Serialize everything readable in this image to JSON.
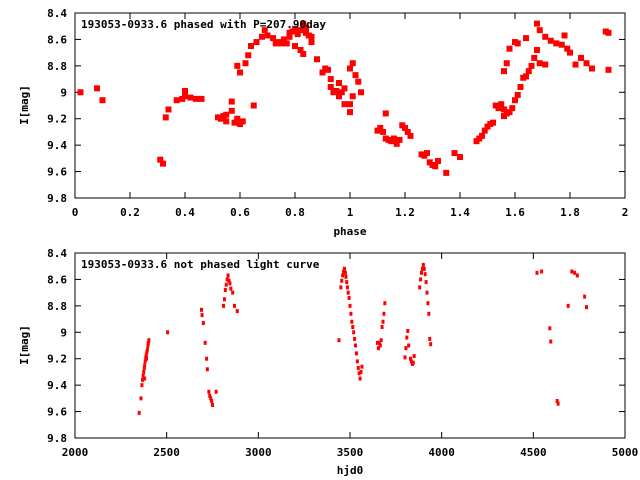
{
  "chart_data": [
    {
      "type": "scatter",
      "title": "193053-0933.6 phased with P=207.90day",
      "xlabel": "phase",
      "ylabel": "I[mag]",
      "xlim": [
        0,
        2
      ],
      "ylim": [
        9.8,
        8.4
      ],
      "y_inverted": true,
      "grid": false,
      "marker_color": "#ff0000",
      "xticks": [
        0,
        0.2,
        0.4,
        0.6,
        0.8,
        1,
        1.2,
        1.4,
        1.6,
        1.8,
        2
      ],
      "xtick_labels": [
        "0",
        "0.2",
        "0.4",
        "0.6",
        "0.8",
        "1",
        "1.2",
        "1.4",
        "1.6",
        "1.8",
        "2"
      ],
      "yticks": [
        8.4,
        8.6,
        8.8,
        9,
        9.2,
        9.4,
        9.6,
        9.8
      ],
      "ytick_labels": [
        "8.4",
        "8.6",
        "8.8",
        "9",
        "9.2",
        "9.4",
        "9.6",
        "9.8"
      ],
      "points": [
        [
          0.02,
          9.0
        ],
        [
          0.08,
          8.97
        ],
        [
          0.1,
          9.06
        ],
        [
          0.31,
          9.51
        ],
        [
          0.32,
          9.54
        ],
        [
          0.33,
          9.19
        ],
        [
          0.34,
          9.13
        ],
        [
          0.37,
          9.06
        ],
        [
          0.39,
          9.05
        ],
        [
          0.4,
          9.03
        ],
        [
          0.4,
          8.99
        ],
        [
          0.42,
          9.04
        ],
        [
          0.44,
          9.05
        ],
        [
          0.46,
          9.05
        ],
        [
          0.52,
          9.19
        ],
        [
          0.53,
          9.2
        ],
        [
          0.54,
          9.18
        ],
        [
          0.55,
          9.22
        ],
        [
          0.55,
          9.17
        ],
        [
          0.57,
          9.07
        ],
        [
          0.57,
          9.14
        ],
        [
          0.58,
          9.23
        ],
        [
          0.59,
          9.2
        ],
        [
          0.59,
          9.22
        ],
        [
          0.6,
          9.24
        ],
        [
          0.61,
          9.22
        ],
        [
          0.59,
          8.8
        ],
        [
          0.6,
          8.85
        ],
        [
          0.62,
          8.78
        ],
        [
          0.63,
          8.72
        ],
        [
          0.64,
          8.65
        ],
        [
          0.65,
          9.1
        ],
        [
          0.66,
          8.62
        ],
        [
          0.68,
          8.58
        ],
        [
          0.69,
          8.53
        ],
        [
          0.7,
          8.57
        ],
        [
          0.72,
          8.59
        ],
        [
          0.73,
          8.63
        ],
        [
          0.74,
          8.62
        ],
        [
          0.75,
          8.63
        ],
        [
          0.76,
          8.6
        ],
        [
          0.77,
          8.63
        ],
        [
          0.78,
          8.55
        ],
        [
          0.78,
          8.58
        ],
        [
          0.79,
          8.54
        ],
        [
          0.8,
          8.53
        ],
        [
          0.8,
          8.52
        ],
        [
          0.81,
          8.56
        ],
        [
          0.82,
          8.53
        ],
        [
          0.83,
          8.48
        ],
        [
          0.83,
          8.51
        ],
        [
          0.84,
          8.55
        ],
        [
          0.84,
          8.51
        ],
        [
          0.85,
          8.57
        ],
        [
          0.86,
          8.58
        ],
        [
          0.86,
          8.62
        ],
        [
          0.82,
          8.68
        ],
        [
          0.83,
          8.71
        ],
        [
          0.8,
          8.65
        ],
        [
          0.88,
          8.75
        ],
        [
          0.9,
          8.85
        ],
        [
          0.91,
          8.82
        ],
        [
          0.92,
          8.83
        ],
        [
          0.93,
          8.9
        ],
        [
          0.93,
          8.96
        ],
        [
          0.94,
          9.0
        ],
        [
          0.95,
          8.99
        ],
        [
          0.96,
          9.03
        ],
        [
          0.96,
          8.93
        ],
        [
          0.97,
          9.0
        ],
        [
          0.98,
          8.97
        ],
        [
          0.98,
          9.09
        ],
        [
          1.0,
          9.09
        ],
        [
          1.0,
          9.15
        ],
        [
          1.01,
          9.03
        ],
        [
          1.02,
          8.87
        ],
        [
          1.03,
          8.92
        ],
        [
          1.0,
          8.82
        ],
        [
          1.01,
          8.78
        ],
        [
          1.04,
          9.0
        ],
        [
          1.1,
          9.29
        ],
        [
          1.11,
          9.27
        ],
        [
          1.12,
          9.3
        ],
        [
          1.13,
          9.35
        ],
        [
          1.14,
          9.36
        ],
        [
          1.15,
          9.37
        ],
        [
          1.16,
          9.35
        ],
        [
          1.17,
          9.39
        ],
        [
          1.18,
          9.36
        ],
        [
          1.13,
          9.16
        ],
        [
          1.19,
          9.25
        ],
        [
          1.2,
          9.27
        ],
        [
          1.21,
          9.3
        ],
        [
          1.22,
          9.33
        ],
        [
          1.26,
          9.47
        ],
        [
          1.27,
          9.48
        ],
        [
          1.28,
          9.46
        ],
        [
          1.29,
          9.53
        ],
        [
          1.3,
          9.55
        ],
        [
          1.31,
          9.56
        ],
        [
          1.32,
          9.52
        ],
        [
          1.35,
          9.61
        ],
        [
          1.38,
          9.46
        ],
        [
          1.4,
          9.49
        ],
        [
          1.46,
          9.37
        ],
        [
          1.47,
          9.35
        ],
        [
          1.48,
          9.33
        ],
        [
          1.49,
          9.29
        ],
        [
          1.5,
          9.26
        ],
        [
          1.51,
          9.24
        ],
        [
          1.52,
          9.23
        ],
        [
          1.53,
          9.1
        ],
        [
          1.54,
          9.12
        ],
        [
          1.55,
          9.09
        ],
        [
          1.56,
          9.13
        ],
        [
          1.56,
          9.18
        ],
        [
          1.57,
          9.16
        ],
        [
          1.58,
          9.15
        ],
        [
          1.59,
          9.12
        ],
        [
          1.6,
          9.06
        ],
        [
          1.61,
          9.02
        ],
        [
          1.62,
          8.96
        ],
        [
          1.63,
          8.89
        ],
        [
          1.64,
          8.88
        ],
        [
          1.65,
          8.84
        ],
        [
          1.66,
          8.8
        ],
        [
          1.67,
          8.74
        ],
        [
          1.68,
          8.68
        ],
        [
          1.56,
          8.84
        ],
        [
          1.57,
          8.78
        ],
        [
          1.58,
          8.67
        ],
        [
          1.6,
          8.62
        ],
        [
          1.61,
          8.63
        ],
        [
          1.64,
          8.59
        ],
        [
          1.68,
          8.48
        ],
        [
          1.69,
          8.53
        ],
        [
          1.71,
          8.58
        ],
        [
          1.69,
          8.78
        ],
        [
          1.71,
          8.79
        ],
        [
          1.73,
          8.61
        ],
        [
          1.75,
          8.63
        ],
        [
          1.77,
          8.64
        ],
        [
          1.78,
          8.57
        ],
        [
          1.79,
          8.67
        ],
        [
          1.8,
          8.7
        ],
        [
          1.82,
          8.79
        ],
        [
          1.84,
          8.74
        ],
        [
          1.86,
          8.78
        ],
        [
          1.88,
          8.82
        ],
        [
          1.93,
          8.54
        ],
        [
          1.94,
          8.55
        ],
        [
          1.94,
          8.83
        ]
      ]
    },
    {
      "type": "scatter",
      "title": "193053-0933.6 not phased light curve",
      "xlabel": "hjd0",
      "ylabel": "I[mag]",
      "xlim": [
        2000,
        5000
      ],
      "ylim": [
        9.8,
        8.4
      ],
      "y_inverted": true,
      "grid": false,
      "marker_color": "#ff0000",
      "xticks": [
        2000,
        2500,
        3000,
        3500,
        4000,
        4500,
        5000
      ],
      "xtick_labels": [
        "2000",
        "2500",
        "3000",
        "3500",
        "4000",
        "4500",
        "5000"
      ],
      "yticks": [
        8.4,
        8.6,
        8.8,
        9,
        9.2,
        9.4,
        9.6,
        9.8
      ],
      "ytick_labels": [
        "8.4",
        "8.6",
        "8.8",
        "9",
        "9.2",
        "9.4",
        "9.6",
        "9.8"
      ],
      "points": [
        [
          2350,
          9.61
        ],
        [
          2360,
          9.5
        ],
        [
          2365,
          9.4
        ],
        [
          2368,
          9.36
        ],
        [
          2372,
          9.33
        ],
        [
          2375,
          9.3
        ],
        [
          2378,
          9.27
        ],
        [
          2380,
          9.25
        ],
        [
          2383,
          9.22
        ],
        [
          2386,
          9.19
        ],
        [
          2389,
          9.17
        ],
        [
          2392,
          9.15
        ],
        [
          2395,
          9.13
        ],
        [
          2398,
          9.1
        ],
        [
          2400,
          9.08
        ],
        [
          2403,
          9.06
        ],
        [
          2380,
          9.35
        ],
        [
          2390,
          9.2
        ],
        [
          2505,
          9.0
        ],
        [
          2690,
          8.83
        ],
        [
          2693,
          8.87
        ],
        [
          2700,
          8.93
        ],
        [
          2710,
          9.08
        ],
        [
          2718,
          9.2
        ],
        [
          2722,
          9.28
        ],
        [
          2730,
          9.45
        ],
        [
          2735,
          9.48
        ],
        [
          2740,
          9.5
        ],
        [
          2745,
          9.52
        ],
        [
          2750,
          9.55
        ],
        [
          2770,
          9.45
        ],
        [
          2810,
          8.8
        ],
        [
          2815,
          8.75
        ],
        [
          2820,
          8.68
        ],
        [
          2825,
          8.64
        ],
        [
          2830,
          8.6
        ],
        [
          2835,
          8.57
        ],
        [
          2840,
          8.61
        ],
        [
          2845,
          8.63
        ],
        [
          2850,
          8.67
        ],
        [
          2860,
          8.7
        ],
        [
          2870,
          8.8
        ],
        [
          2885,
          8.84
        ],
        [
          3440,
          9.06
        ],
        [
          3450,
          8.66
        ],
        [
          3455,
          8.61
        ],
        [
          3460,
          8.57
        ],
        [
          3465,
          8.54
        ],
        [
          3470,
          8.52
        ],
        [
          3475,
          8.55
        ],
        [
          3478,
          8.58
        ],
        [
          3482,
          8.62
        ],
        [
          3486,
          8.66
        ],
        [
          3490,
          8.7
        ],
        [
          3495,
          8.74
        ],
        [
          3500,
          8.8
        ],
        [
          3505,
          8.86
        ],
        [
          3510,
          8.92
        ],
        [
          3515,
          8.96
        ],
        [
          3520,
          9.0
        ],
        [
          3525,
          9.05
        ],
        [
          3530,
          9.1
        ],
        [
          3535,
          9.16
        ],
        [
          3540,
          9.22
        ],
        [
          3545,
          9.27
        ],
        [
          3550,
          9.31
        ],
        [
          3555,
          9.35
        ],
        [
          3560,
          9.3
        ],
        [
          3565,
          9.26
        ],
        [
          3650,
          9.08
        ],
        [
          3655,
          9.12
        ],
        [
          3660,
          9.08
        ],
        [
          3665,
          9.1
        ],
        [
          3670,
          9.06
        ],
        [
          3675,
          8.96
        ],
        [
          3680,
          8.92
        ],
        [
          3685,
          8.86
        ],
        [
          3690,
          8.78
        ],
        [
          3800,
          9.19
        ],
        [
          3805,
          9.12
        ],
        [
          3810,
          9.04
        ],
        [
          3815,
          8.99
        ],
        [
          3820,
          9.1
        ],
        [
          3830,
          9.2
        ],
        [
          3835,
          9.22
        ],
        [
          3840,
          9.24
        ],
        [
          3845,
          9.23
        ],
        [
          3850,
          9.18
        ],
        [
          3880,
          8.66
        ],
        [
          3885,
          8.6
        ],
        [
          3890,
          8.55
        ],
        [
          3895,
          8.52
        ],
        [
          3900,
          8.49
        ],
        [
          3905,
          8.52
        ],
        [
          3910,
          8.56
        ],
        [
          3915,
          8.62
        ],
        [
          3920,
          8.7
        ],
        [
          3925,
          8.78
        ],
        [
          3930,
          8.86
        ],
        [
          3935,
          9.05
        ],
        [
          3940,
          9.09
        ],
        [
          4520,
          8.55
        ],
        [
          4545,
          8.54
        ],
        [
          4590,
          8.97
        ],
        [
          4595,
          9.07
        ],
        [
          4630,
          9.52
        ],
        [
          4635,
          9.54
        ],
        [
          4690,
          8.8
        ],
        [
          4710,
          8.54
        ],
        [
          4725,
          8.55
        ],
        [
          4740,
          8.57
        ],
        [
          4780,
          8.73
        ],
        [
          4790,
          8.81
        ]
      ]
    }
  ]
}
